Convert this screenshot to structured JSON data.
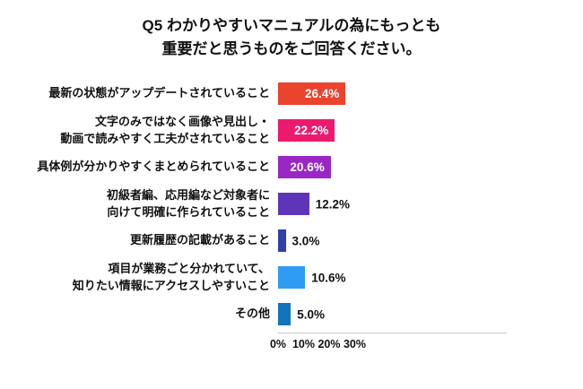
{
  "title": {
    "line1": "Q5 わかりやすいマニュアルの為にもっとも",
    "line2": "重要だと思うものをご回答ください。"
  },
  "chart_data": {
    "type": "bar",
    "orientation": "horizontal",
    "title": "Q5 わかりやすいマニュアルの為にもっとも重要だと思うものをご回答ください。",
    "xlabel": "",
    "ylabel": "",
    "xlim": [
      0,
      30
    ],
    "x_ticks": [
      "0%",
      "10%",
      "20%",
      "30%"
    ],
    "grid": false,
    "legend": false,
    "categories": [
      "最新の状態がアップデートされていること",
      "文字のみではなく画像や見出し・動画で読みやすく工夫がされていること",
      "具体例が分かりやすくまとめられていること",
      "初級者編、応用編など対象者に向けて明確に作られていること",
      "更新履歴の記載があること",
      "項目が業務ごと分かれていて、知りたい情報にアクセスしやすいこと",
      "その他"
    ],
    "values": [
      26.4,
      22.2,
      20.6,
      12.2,
      3.0,
      10.6,
      5.0
    ],
    "rows": [
      {
        "label_lines": [
          "最新の状態がアップデートされていること"
        ],
        "value": 26.4,
        "display": "26.4%",
        "color": "#ea432e",
        "label_inside": true
      },
      {
        "label_lines": [
          "文字のみではなく画像や見出し・",
          "動画で読みやすく工夫がされていること"
        ],
        "value": 22.2,
        "display": "22.2%",
        "color": "#eb1a6e",
        "label_inside": true
      },
      {
        "label_lines": [
          "具体例が分かりやすくまとめられていること"
        ],
        "value": 20.6,
        "display": "20.6%",
        "color": "#9a27c5",
        "label_inside": true
      },
      {
        "label_lines": [
          "初級者編、応用編など対象者に",
          "向けて明確に作られていること"
        ],
        "value": 12.2,
        "display": "12.2%",
        "color": "#5e35b8",
        "label_inside": false
      },
      {
        "label_lines": [
          "更新履歴の記載があること"
        ],
        "value": 3.0,
        "display": "3.0%",
        "color": "#3340a8",
        "label_inside": false
      },
      {
        "label_lines": [
          "項目が業務ごと分かれていて、",
          "知りたい情報にアクセスしやすいこと"
        ],
        "value": 10.6,
        "display": "10.6%",
        "color": "#2e9cf4",
        "label_inside": false
      },
      {
        "label_lines": [
          "その他"
        ],
        "value": 5.0,
        "display": "5.0%",
        "color": "#1274bd",
        "label_inside": false
      }
    ]
  }
}
